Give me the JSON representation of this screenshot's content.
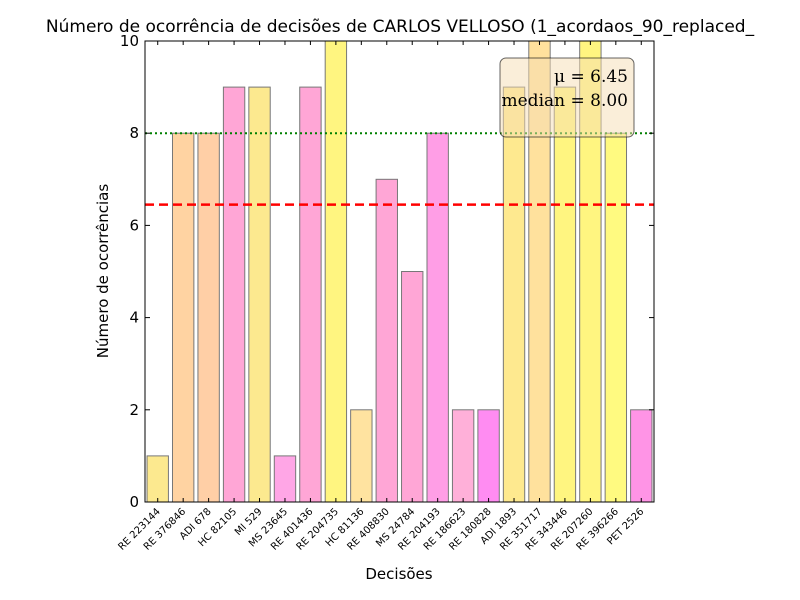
{
  "chart_data": {
    "type": "bar",
    "title": "Número de ocorrência de decisões de CARLOS VELLOSO (1_acordaos_90_replaced_",
    "xlabel": "Decisões",
    "ylabel": "Número de ocorrências",
    "ylim": [
      0,
      10
    ],
    "yticks": [
      "0",
      "2",
      "4",
      "6",
      "8",
      "10"
    ],
    "categories": [
      "RE 223144",
      "RE 376846",
      "ADI 678",
      "HC 82105",
      "MI 529",
      "MS 23645",
      "RE 401436",
      "RE 204735",
      "HC 81136",
      "RE 408830",
      "MS 24784",
      "RE 204193",
      "RE 186623",
      "RE 180828",
      "ADI 1893",
      "RE 351717",
      "RE 343446",
      "RE 207260",
      "RE 396266",
      "PET 2526"
    ],
    "values": [
      1,
      8,
      8,
      9,
      9,
      1,
      9,
      10,
      2,
      7,
      5,
      8,
      2,
      2,
      9,
      10,
      9,
      10,
      8,
      2
    ],
    "bar_colors": [
      "#fce98f",
      "#ffd3a2",
      "#ffcfa6",
      "#ffa6d6",
      "#fce98f",
      "#ffa6e6",
      "#ffa6d6",
      "#fff580",
      "#ffe3a0",
      "#ffa6d6",
      "#ffa6d6",
      "#ff9ee6",
      "#ffb0d9",
      "#ff8cf2",
      "#fee98f",
      "#ffe19d",
      "#fff580",
      "#fff580",
      "#fffa80",
      "#ff94e6"
    ],
    "mean": 6.45,
    "median": 8.0,
    "mean_label": "μ = 6.45",
    "median_label": "median = 8.00",
    "mean_line_color": "#ff0000",
    "median_line_color": "#008000",
    "legend_box_placement": "top-right",
    "grid": false
  }
}
